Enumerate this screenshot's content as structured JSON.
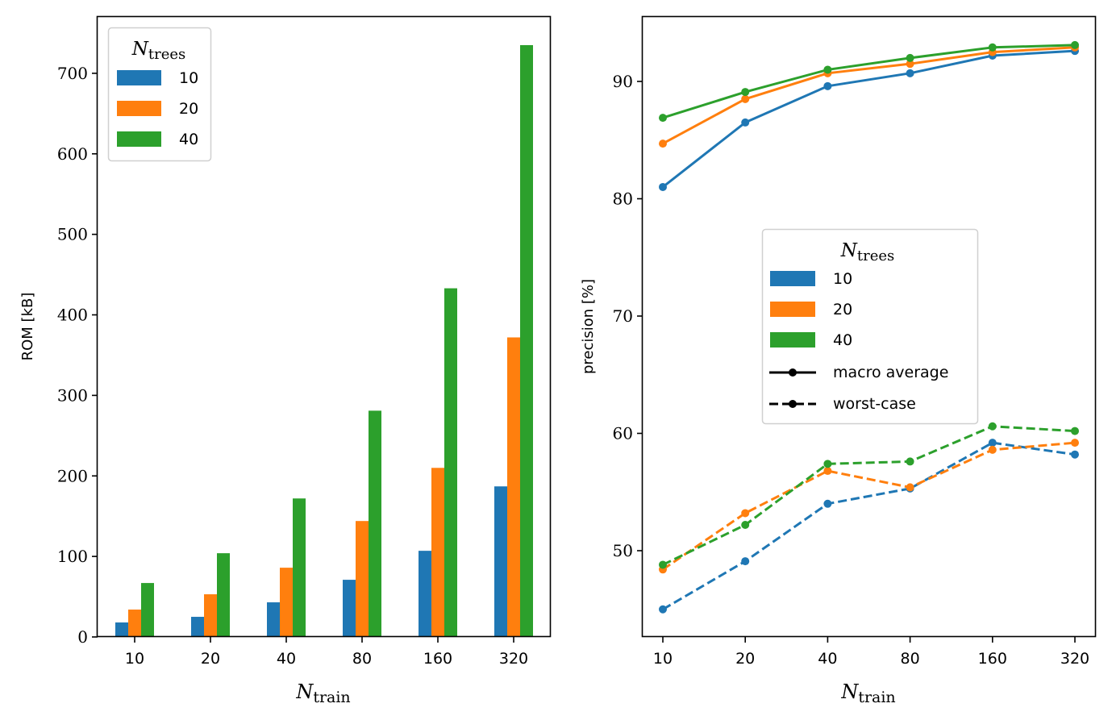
{
  "chart_data": [
    {
      "type": "bar",
      "title": "",
      "xlabel": "N_train",
      "xlabel_main": "N",
      "xlabel_sub": "train",
      "ylabel": "ROM [kB]",
      "ylim": [
        0,
        770
      ],
      "yticks": [
        0,
        100,
        200,
        300,
        400,
        500,
        600,
        700
      ],
      "categories": [
        "10",
        "20",
        "40",
        "80",
        "160",
        "320"
      ],
      "series": [
        {
          "name": "10",
          "color": "#1f77b4",
          "values": [
            18,
            25,
            43,
            71,
            107,
            187
          ]
        },
        {
          "name": "20",
          "color": "#ff7f0e",
          "values": [
            34,
            53,
            86,
            144,
            210,
            372
          ]
        },
        {
          "name": "40",
          "color": "#2ca02c",
          "values": [
            67,
            104,
            172,
            281,
            433,
            735
          ]
        }
      ],
      "legend": {
        "title_main": "N",
        "title_sub": "trees",
        "placement": "top-left"
      },
      "grid": false
    },
    {
      "type": "line",
      "title": "",
      "xlabel": "N_train",
      "xlabel_main": "N",
      "xlabel_sub": "train",
      "ylabel": "precision [%]",
      "ylim": [
        42.5,
        95.5
      ],
      "yticks": [
        50,
        60,
        70,
        80,
        90
      ],
      "categories": [
        "10",
        "20",
        "40",
        "80",
        "160",
        "320"
      ],
      "series": [
        {
          "name": "10 macro average",
          "group": "10",
          "style": "solid",
          "color": "#1f77b4",
          "values": [
            81.0,
            86.5,
            89.6,
            90.7,
            92.2,
            92.6
          ]
        },
        {
          "name": "20 macro average",
          "group": "20",
          "style": "solid",
          "color": "#ff7f0e",
          "values": [
            84.7,
            88.5,
            90.7,
            91.5,
            92.5,
            92.9
          ]
        },
        {
          "name": "40 macro average",
          "group": "40",
          "style": "solid",
          "color": "#2ca02c",
          "values": [
            86.9,
            89.1,
            91.0,
            92.0,
            92.9,
            93.1
          ]
        },
        {
          "name": "10 worst-case",
          "group": "10",
          "style": "dashed",
          "color": "#1f77b4",
          "values": [
            45.0,
            49.1,
            54.0,
            55.3,
            59.2,
            58.2
          ]
        },
        {
          "name": "20 worst-case",
          "group": "20",
          "style": "dashed",
          "color": "#ff7f0e",
          "values": [
            48.4,
            53.2,
            56.8,
            55.4,
            58.6,
            59.2
          ]
        },
        {
          "name": "40 worst-case",
          "group": "40",
          "style": "dashed",
          "color": "#2ca02c",
          "values": [
            48.8,
            52.2,
            57.4,
            57.6,
            60.6,
            60.2
          ]
        }
      ],
      "legend": {
        "title_main": "N",
        "title_sub": "trees",
        "placement": "center",
        "color_entries": [
          {
            "label": "10",
            "color": "#1f77b4"
          },
          {
            "label": "20",
            "color": "#ff7f0e"
          },
          {
            "label": "40",
            "color": "#2ca02c"
          }
        ],
        "style_entries": [
          {
            "label": "macro average",
            "style": "solid"
          },
          {
            "label": "worst-case",
            "style": "dashed"
          }
        ]
      },
      "grid": false
    }
  ]
}
